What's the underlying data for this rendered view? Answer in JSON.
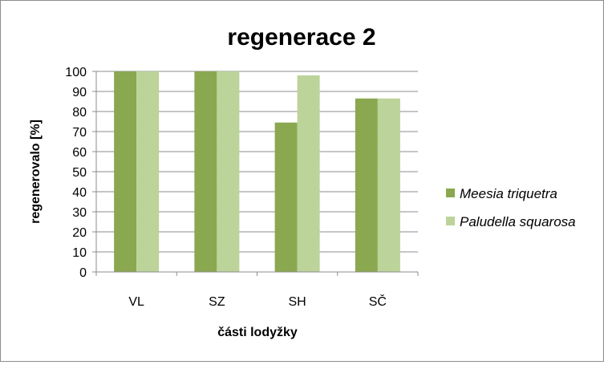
{
  "chart_data": {
    "type": "bar",
    "title": "regenerace 2",
    "xlabel": "části lodyžky",
    "ylabel": "regenerovalo [%]",
    "categories": [
      "VL",
      "SZ",
      "SH",
      "SČ"
    ],
    "ylim": [
      0,
      100
    ],
    "ytick_step": 10,
    "grid": true,
    "legend_position": "right",
    "series": [
      {
        "name": "Meesia triquetra",
        "color": "#8aa84f",
        "values": [
          100,
          100,
          74.5,
          86.5
        ]
      },
      {
        "name": "Paludella squarosa",
        "color": "#bcd39a",
        "values": [
          100,
          100,
          98,
          86.5
        ]
      }
    ]
  }
}
